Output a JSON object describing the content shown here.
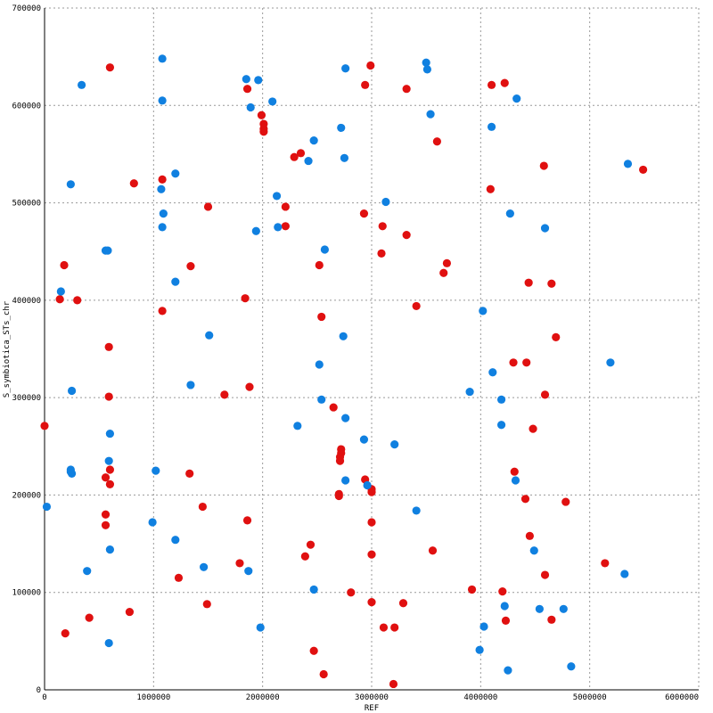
{
  "chart_data": {
    "type": "scatter",
    "xlabel": "REF",
    "ylabel": "S_symbiotica_STs_chr",
    "xlim": [
      0,
      6000000
    ],
    "ylim": [
      0,
      700000
    ],
    "x_ticks": [
      0,
      1000000,
      2000000,
      3000000,
      4000000,
      5000000,
      6000000
    ],
    "y_ticks": [
      0,
      100000,
      200000,
      300000,
      400000,
      500000,
      600000,
      700000
    ],
    "grid": true,
    "colors": {
      "red": "#e01010",
      "blue": "#1080e0"
    },
    "series": [
      {
        "color": "#e01010",
        "points": [
          [
            600000,
            639000
          ],
          [
            1860000,
            617000
          ],
          [
            1990000,
            590000
          ],
          [
            2010000,
            581000
          ],
          [
            2010000,
            576000
          ],
          [
            2010000,
            573000
          ],
          [
            2990000,
            641000
          ],
          [
            2940000,
            621000
          ],
          [
            3320000,
            617000
          ],
          [
            4100000,
            621000
          ],
          [
            4220000,
            623000
          ],
          [
            3600000,
            563000
          ],
          [
            2290000,
            547000
          ],
          [
            2350000,
            551000
          ],
          [
            1080000,
            524000
          ],
          [
            820000,
            520000
          ],
          [
            1500000,
            496000
          ],
          [
            2210000,
            496000
          ],
          [
            2210000,
            476000
          ],
          [
            2930000,
            489000
          ],
          [
            3100000,
            476000
          ],
          [
            4090000,
            514000
          ],
          [
            4580000,
            538000
          ],
          [
            5490000,
            534000
          ],
          [
            3320000,
            467000
          ],
          [
            180000,
            436000
          ],
          [
            1340000,
            435000
          ],
          [
            2520000,
            436000
          ],
          [
            3090000,
            448000
          ],
          [
            3690000,
            438000
          ],
          [
            3660000,
            428000
          ],
          [
            4440000,
            418000
          ],
          [
            4650000,
            417000
          ],
          [
            140000,
            401000
          ],
          [
            300000,
            400000
          ],
          [
            1080000,
            389000
          ],
          [
            1840000,
            402000
          ],
          [
            3410000,
            394000
          ],
          [
            2540000,
            383000
          ],
          [
            4690000,
            362000
          ],
          [
            590000,
            352000
          ],
          [
            4300000,
            336000
          ],
          [
            4420000,
            336000
          ],
          [
            590000,
            301000
          ],
          [
            1650000,
            303000
          ],
          [
            1880000,
            311000
          ],
          [
            4590000,
            303000
          ],
          [
            0,
            271000
          ],
          [
            2650000,
            290000
          ],
          [
            4480000,
            268000
          ],
          [
            600000,
            226000
          ],
          [
            560000,
            218000
          ],
          [
            600000,
            211000
          ],
          [
            2720000,
            247000
          ],
          [
            2720000,
            243000
          ],
          [
            2710000,
            239000
          ],
          [
            2710000,
            235000
          ],
          [
            1330000,
            222000
          ],
          [
            2940000,
            216000
          ],
          [
            3000000,
            206000
          ],
          [
            3000000,
            203000
          ],
          [
            2700000,
            201000
          ],
          [
            2700000,
            199000
          ],
          [
            4310000,
            224000
          ],
          [
            4410000,
            196000
          ],
          [
            4780000,
            193000
          ],
          [
            560000,
            180000
          ],
          [
            560000,
            169000
          ],
          [
            1450000,
            188000
          ],
          [
            1860000,
            174000
          ],
          [
            3000000,
            172000
          ],
          [
            4450000,
            158000
          ],
          [
            3560000,
            143000
          ],
          [
            2440000,
            149000
          ],
          [
            2390000,
            137000
          ],
          [
            1790000,
            130000
          ],
          [
            1230000,
            115000
          ],
          [
            3000000,
            139000
          ],
          [
            4590000,
            118000
          ],
          [
            5140000,
            130000
          ],
          [
            780000,
            80000
          ],
          [
            410000,
            74000
          ],
          [
            1490000,
            88000
          ],
          [
            2810000,
            100000
          ],
          [
            3000000,
            90000
          ],
          [
            3290000,
            89000
          ],
          [
            3920000,
            103000
          ],
          [
            4200000,
            101000
          ],
          [
            4230000,
            71000
          ],
          [
            4650000,
            72000
          ],
          [
            190000,
            58000
          ],
          [
            3110000,
            64000
          ],
          [
            3210000,
            64000
          ],
          [
            2470000,
            40000
          ],
          [
            2560000,
            16000
          ],
          [
            3200000,
            6000
          ]
        ]
      },
      {
        "color": "#1080e0",
        "points": [
          [
            1080000,
            648000
          ],
          [
            340000,
            621000
          ],
          [
            1080000,
            605000
          ],
          [
            1850000,
            627000
          ],
          [
            1960000,
            626000
          ],
          [
            2760000,
            638000
          ],
          [
            3500000,
            644000
          ],
          [
            3510000,
            637000
          ],
          [
            1890000,
            598000
          ],
          [
            2090000,
            604000
          ],
          [
            3540000,
            591000
          ],
          [
            4330000,
            607000
          ],
          [
            2470000,
            564000
          ],
          [
            2720000,
            577000
          ],
          [
            2420000,
            543000
          ],
          [
            2750000,
            546000
          ],
          [
            4100000,
            578000
          ],
          [
            5350000,
            540000
          ],
          [
            240000,
            519000
          ],
          [
            1200000,
            530000
          ],
          [
            1070000,
            514000
          ],
          [
            2130000,
            507000
          ],
          [
            3130000,
            501000
          ],
          [
            1090000,
            489000
          ],
          [
            1080000,
            475000
          ],
          [
            1940000,
            471000
          ],
          [
            2140000,
            475000
          ],
          [
            4270000,
            489000
          ],
          [
            4590000,
            474000
          ],
          [
            560000,
            451000
          ],
          [
            580000,
            451000
          ],
          [
            2570000,
            452000
          ],
          [
            1200000,
            419000
          ],
          [
            150000,
            409000
          ],
          [
            1510000,
            364000
          ],
          [
            2740000,
            363000
          ],
          [
            4020000,
            389000
          ],
          [
            2520000,
            334000
          ],
          [
            1340000,
            313000
          ],
          [
            2540000,
            298000
          ],
          [
            4110000,
            326000
          ],
          [
            5190000,
            336000
          ],
          [
            250000,
            307000
          ],
          [
            600000,
            263000
          ],
          [
            3900000,
            306000
          ],
          [
            4190000,
            298000
          ],
          [
            2320000,
            271000
          ],
          [
            2760000,
            279000
          ],
          [
            2930000,
            257000
          ],
          [
            3210000,
            252000
          ],
          [
            4190000,
            272000
          ],
          [
            590000,
            235000
          ],
          [
            240000,
            226000
          ],
          [
            240000,
            224000
          ],
          [
            250000,
            222000
          ],
          [
            1020000,
            225000
          ],
          [
            2760000,
            215000
          ],
          [
            2960000,
            210000
          ],
          [
            4320000,
            215000
          ],
          [
            20000,
            188000
          ],
          [
            990000,
            172000
          ],
          [
            3410000,
            184000
          ],
          [
            1200000,
            154000
          ],
          [
            600000,
            144000
          ],
          [
            390000,
            122000
          ],
          [
            1460000,
            126000
          ],
          [
            1870000,
            122000
          ],
          [
            4490000,
            143000
          ],
          [
            5320000,
            119000
          ],
          [
            2470000,
            103000
          ],
          [
            4220000,
            86000
          ],
          [
            4540000,
            83000
          ],
          [
            4760000,
            83000
          ],
          [
            4030000,
            65000
          ],
          [
            1980000,
            64000
          ],
          [
            590000,
            48000
          ],
          [
            3990000,
            41000
          ],
          [
            4250000,
            20000
          ],
          [
            4830000,
            24000
          ]
        ]
      }
    ]
  }
}
